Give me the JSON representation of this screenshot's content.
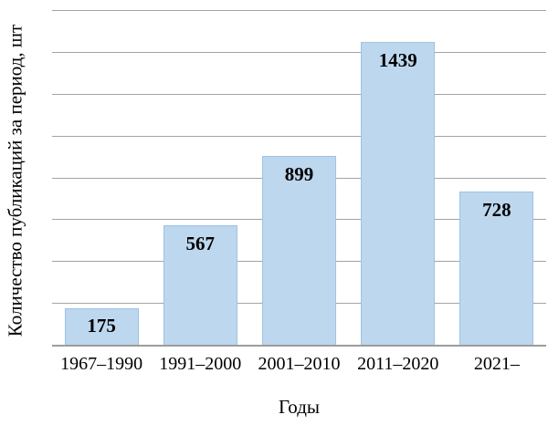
{
  "chart_data": {
    "type": "bar",
    "title": "",
    "categories": [
      "1967–1990",
      "1991–2000",
      "2001–2010",
      "2011–2020",
      "2021–"
    ],
    "values": [
      175,
      567,
      899,
      1439,
      728
    ],
    "value_labels": [
      "175",
      "567",
      "899",
      "1439",
      "728"
    ],
    "xlabel": "Годы",
    "ylabel": "Количество публикаций за период, шт",
    "ylim": [
      0,
      1600
    ],
    "gridline_step": 200,
    "grid": "horizontal-only",
    "legend": "none",
    "y_tick_labels_visible": false,
    "bar_fill_color": "#BDD7EE",
    "bar_border_color": "#9DC3E6",
    "gridline_color": "#A3A3A3",
    "axis_line_color": "#9C9C9C",
    "text_color": "#000000"
  }
}
